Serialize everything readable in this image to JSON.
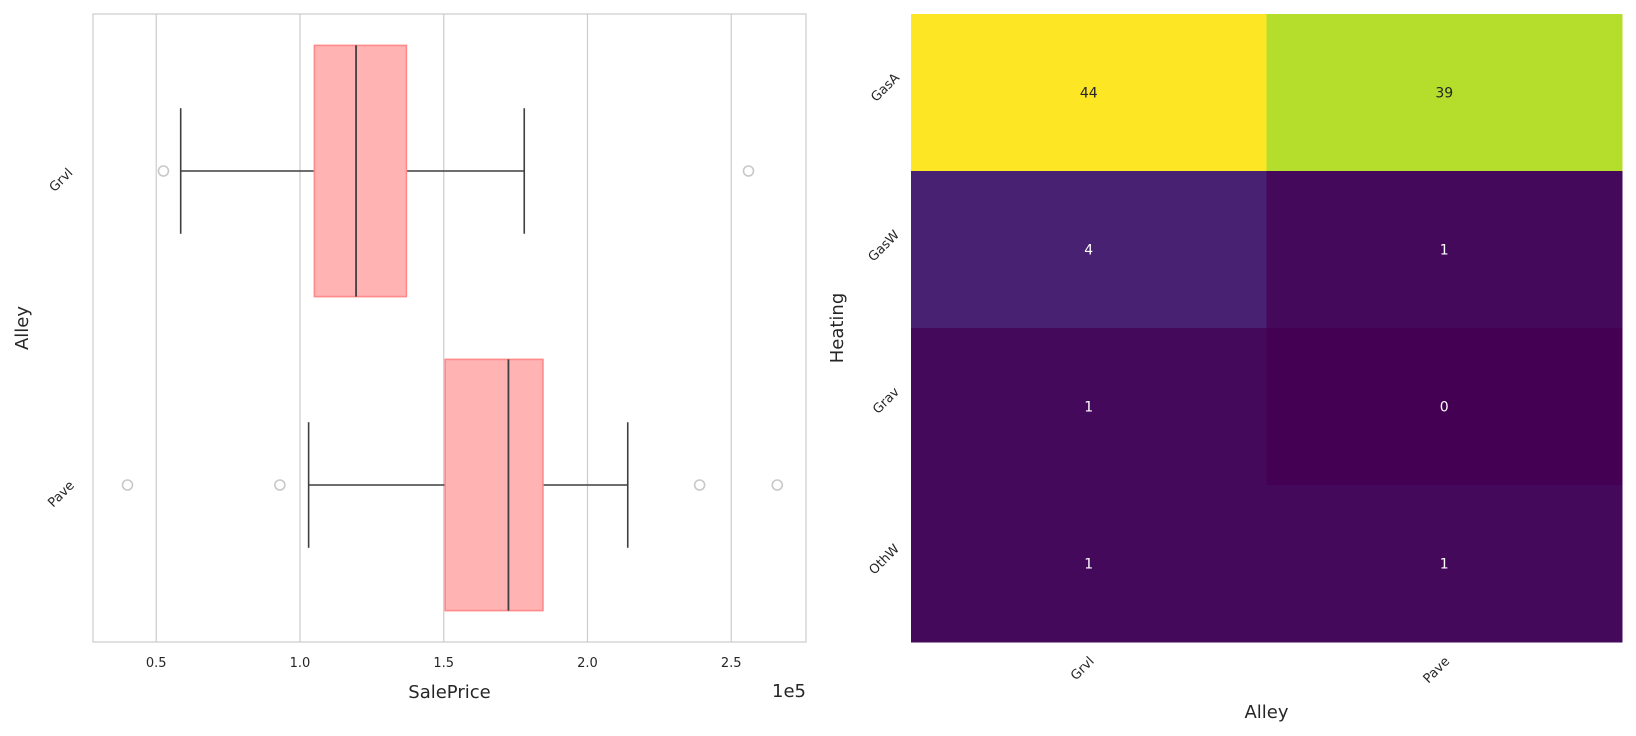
{
  "chart_data": [
    {
      "type": "box",
      "orientation": "horizontal",
      "xlabel": "SalePrice",
      "ylabel": "Alley",
      "x_scale_label": "1e5",
      "xlim": [
        28000,
        276000
      ],
      "x_ticks": [
        50000,
        100000,
        150000,
        200000,
        250000
      ],
      "x_tick_labels": [
        "0.5",
        "1.0",
        "1.5",
        "2.0",
        "2.5"
      ],
      "grid": "vertical",
      "box_color": "#ffb3b3",
      "box_edge_color": "#ff8a8a",
      "categories": [
        "Grvl",
        "Pave"
      ],
      "boxes": [
        {
          "category": "Grvl",
          "whisker_low": 58500,
          "q1": 105000,
          "median": 119500,
          "q3": 137000,
          "whisker_high": 178000,
          "outliers": [
            52500,
            256000
          ]
        },
        {
          "category": "Pave",
          "whisker_low": 103000,
          "q1": 150500,
          "median": 172500,
          "q3": 184500,
          "whisker_high": 214000,
          "outliers": [
            40000,
            93000,
            239000,
            266000
          ]
        }
      ]
    },
    {
      "type": "heatmap",
      "xlabel": "Alley",
      "ylabel": "Heating",
      "x_categories": [
        "Grvl",
        "Pave"
      ],
      "y_categories": [
        "GasA",
        "GasW",
        "Grav",
        "OthW"
      ],
      "values": [
        [
          44,
          39
        ],
        [
          4,
          1
        ],
        [
          1,
          0
        ],
        [
          1,
          1
        ]
      ],
      "colormap": "viridis",
      "vmin": 0,
      "vmax": 44
    }
  ]
}
